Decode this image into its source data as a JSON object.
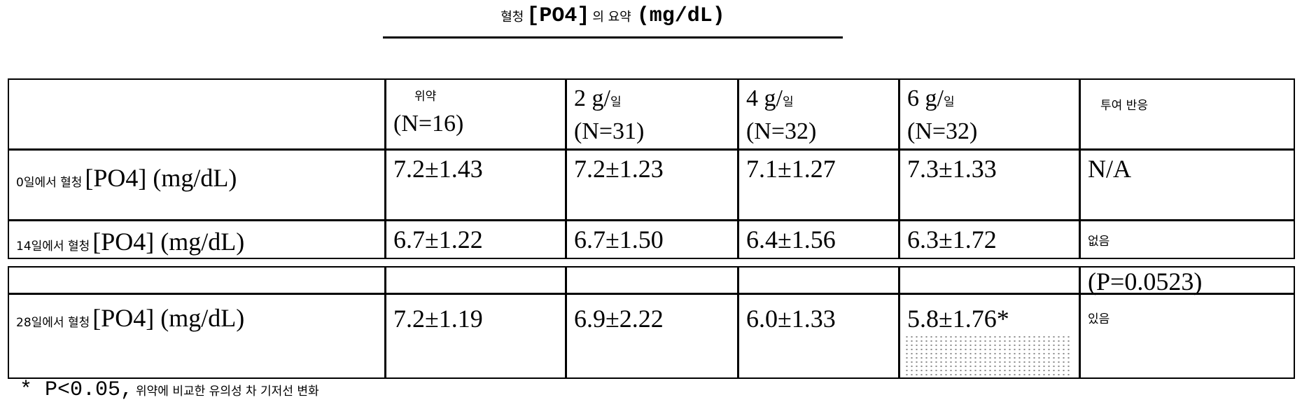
{
  "title": {
    "prefix": "혈청",
    "bracket": "[PO4]",
    "middle": "의 요약",
    "unit": "(mg/dL)"
  },
  "columns": [
    {
      "dose": "위약",
      "n": "(N=16)"
    },
    {
      "dose": "2 g/",
      "dose_unit": "일",
      "n": "(N=31)"
    },
    {
      "dose": "4 g/",
      "dose_unit": "일",
      "n": "(N=32)"
    },
    {
      "dose": "6 g/",
      "dose_unit": "일",
      "n": "(N=32)"
    },
    {
      "dose": "투여 반응"
    }
  ],
  "rows": [
    {
      "day": "0일에서 혈청",
      "label": "[PO4] (mg/dL)",
      "values": [
        "7.2±1.43",
        "7.2±1.23",
        "7.1±1.27",
        "7.3±1.33"
      ],
      "response": "N/A"
    },
    {
      "day": "14일에서 혈청",
      "label": "[PO4] (mg/dL)",
      "values": [
        "6.7±1.22",
        "6.7±1.50",
        "6.4±1.56",
        "6.3±1.72"
      ],
      "response": "없음"
    },
    {
      "day": "28일에서 혈청",
      "label": "[PO4] (mg/dL)",
      "values": [
        "7.2±1.19",
        "6.9±2.22",
        "6.0±1.33",
        "5.8±1.76*"
      ],
      "response": "있음",
      "p_value": "(P=0.0523)"
    }
  ],
  "footnote": {
    "mark": "* P<0.05,",
    "text": "위약에 비교한 유의성 차 기저선 변화"
  }
}
